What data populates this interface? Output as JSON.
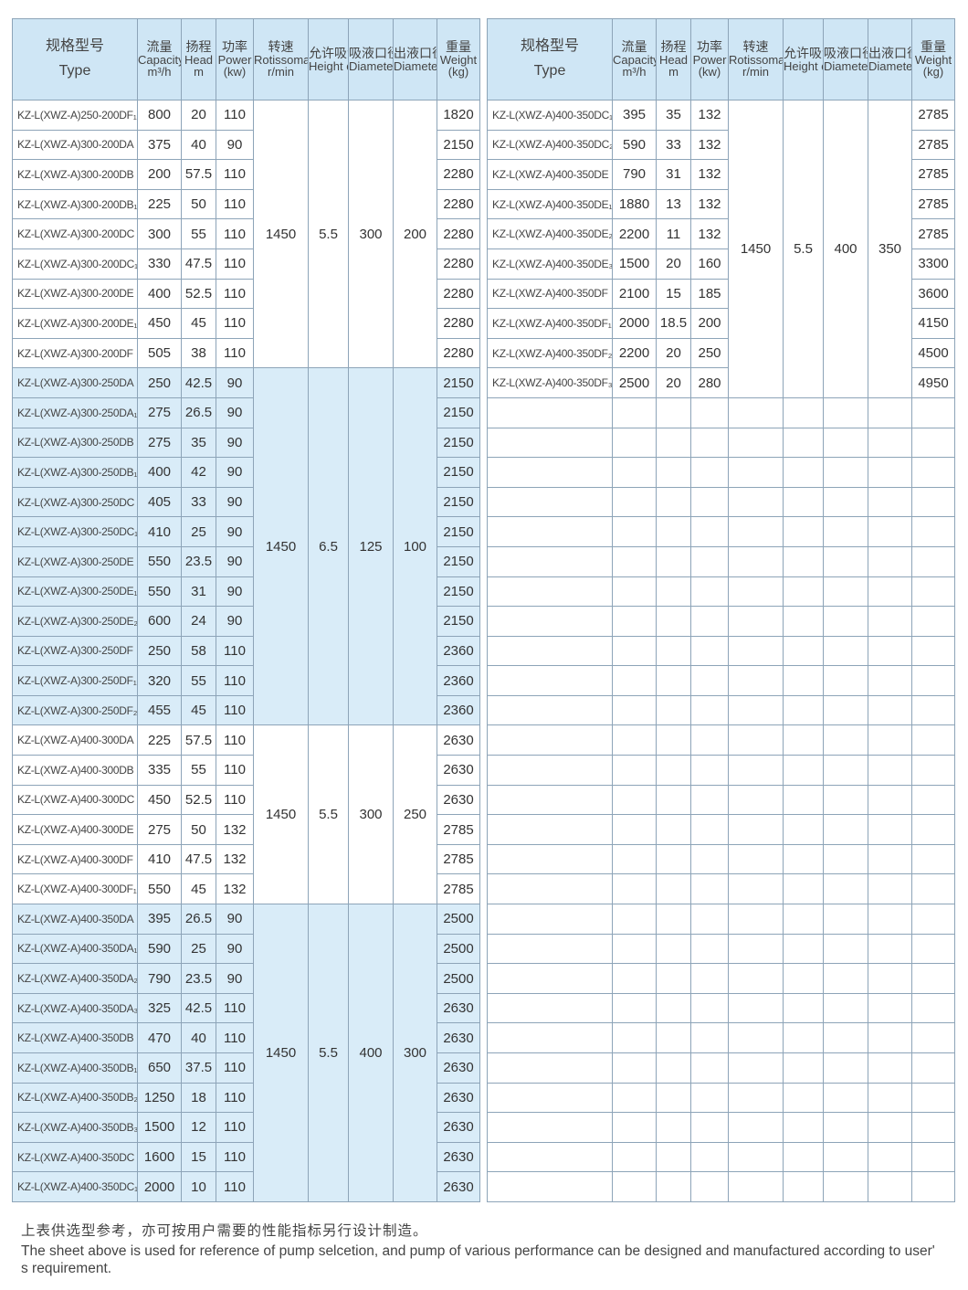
{
  "headers": [
    {
      "zh": "规格型号",
      "en": "Type"
    },
    {
      "zh": "流量",
      "en": "Capacity",
      "unit": "m³/h"
    },
    {
      "zh": "扬程",
      "en": "Head",
      "unit": "m"
    },
    {
      "zh": "功率",
      "en": "Power",
      "unit": "(kw)"
    },
    {
      "zh": "转速",
      "en": "Rotissomat Speed",
      "unit": "r/min"
    },
    {
      "zh": "允许吸深",
      "en": "Height of Suciton"
    },
    {
      "zh": "吸液口径",
      "en": "Diameter of Inlet"
    },
    {
      "zh": "出液口径",
      "en": "Diameter of Outlet"
    },
    {
      "zh": "重量",
      "en": "Weight",
      "unit": "(kg)"
    }
  ],
  "colors": {
    "header": "#cfe6f5",
    "band": "#d9ecf8",
    "border": "#8da4b8"
  },
  "left_groups": [
    {
      "shaded": false,
      "speed": "1450",
      "suction": "5.5",
      "inlet": "300",
      "outlet": "200",
      "rows": [
        [
          "KZ-L(XWZ-A)250-200DF₁",
          "800",
          "20",
          "110",
          "1820"
        ],
        [
          "KZ-L(XWZ-A)300-200DA",
          "375",
          "40",
          "90",
          "2150"
        ],
        [
          "KZ-L(XWZ-A)300-200DB",
          "200",
          "57.5",
          "110",
          "2280"
        ],
        [
          "KZ-L(XWZ-A)300-200DB₁",
          "225",
          "50",
          "110",
          "2280"
        ],
        [
          "KZ-L(XWZ-A)300-200DC",
          "300",
          "55",
          "110",
          "2280"
        ],
        [
          "KZ-L(XWZ-A)300-200DC₁",
          "330",
          "47.5",
          "110",
          "2280"
        ],
        [
          "KZ-L(XWZ-A)300-200DE",
          "400",
          "52.5",
          "110",
          "2280"
        ],
        [
          "KZ-L(XWZ-A)300-200DE₁",
          "450",
          "45",
          "110",
          "2280"
        ],
        [
          "KZ-L(XWZ-A)300-200DF",
          "505",
          "38",
          "110",
          "2280"
        ]
      ]
    },
    {
      "shaded": true,
      "speed": "1450",
      "suction": "6.5",
      "inlet": "125",
      "outlet": "100",
      "rows": [
        [
          "KZ-L(XWZ-A)300-250DA",
          "250",
          "42.5",
          "90",
          "2150"
        ],
        [
          "KZ-L(XWZ-A)300-250DA₁",
          "275",
          "26.5",
          "90",
          "2150"
        ],
        [
          "KZ-L(XWZ-A)300-250DB",
          "275",
          "35",
          "90",
          "2150"
        ],
        [
          "KZ-L(XWZ-A)300-250DB₁",
          "400",
          "42",
          "90",
          "2150"
        ],
        [
          "KZ-L(XWZ-A)300-250DC",
          "405",
          "33",
          "90",
          "2150"
        ],
        [
          "KZ-L(XWZ-A)300-250DC₁",
          "410",
          "25",
          "90",
          "2150"
        ],
        [
          "KZ-L(XWZ-A)300-250DE",
          "550",
          "23.5",
          "90",
          "2150"
        ],
        [
          "KZ-L(XWZ-A)300-250DE₁",
          "550",
          "31",
          "90",
          "2150"
        ],
        [
          "KZ-L(XWZ-A)300-250DE₂",
          "600",
          "24",
          "90",
          "2150"
        ],
        [
          "KZ-L(XWZ-A)300-250DF",
          "250",
          "58",
          "110",
          "2360"
        ],
        [
          "KZ-L(XWZ-A)300-250DF₁",
          "320",
          "55",
          "110",
          "2360"
        ],
        [
          "KZ-L(XWZ-A)300-250DF₂",
          "455",
          "45",
          "110",
          "2360"
        ]
      ]
    },
    {
      "shaded": false,
      "speed": "1450",
      "suction": "5.5",
      "inlet": "300",
      "outlet": "250",
      "rows": [
        [
          "KZ-L(XWZ-A)400-300DA",
          "225",
          "57.5",
          "110",
          "2630"
        ],
        [
          "KZ-L(XWZ-A)400-300DB",
          "335",
          "55",
          "110",
          "2630"
        ],
        [
          "KZ-L(XWZ-A)400-300DC",
          "450",
          "52.5",
          "110",
          "2630"
        ],
        [
          "KZ-L(XWZ-A)400-300DE",
          "275",
          "50",
          "132",
          "2785"
        ],
        [
          "KZ-L(XWZ-A)400-300DF",
          "410",
          "47.5",
          "132",
          "2785"
        ],
        [
          "KZ-L(XWZ-A)400-300DF₁",
          "550",
          "45",
          "132",
          "2785"
        ]
      ]
    },
    {
      "shaded": true,
      "speed": "1450",
      "suction": "5.5",
      "inlet": "400",
      "outlet": "300",
      "rows": [
        [
          "KZ-L(XWZ-A)400-350DA",
          "395",
          "26.5",
          "90",
          "2500"
        ],
        [
          "KZ-L(XWZ-A)400-350DA₁",
          "590",
          "25",
          "90",
          "2500"
        ],
        [
          "KZ-L(XWZ-A)400-350DA₂",
          "790",
          "23.5",
          "90",
          "2500"
        ],
        [
          "KZ-L(XWZ-A)400-350DA₃",
          "325",
          "42.5",
          "110",
          "2630"
        ],
        [
          "KZ-L(XWZ-A)400-350DB",
          "470",
          "40",
          "110",
          "2630"
        ],
        [
          "KZ-L(XWZ-A)400-350DB₁",
          "650",
          "37.5",
          "110",
          "2630"
        ],
        [
          "KZ-L(XWZ-A)400-350DB₂",
          "1250",
          "18",
          "110",
          "2630"
        ],
        [
          "KZ-L(XWZ-A)400-350DB₃",
          "1500",
          "12",
          "110",
          "2630"
        ],
        [
          "KZ-L(XWZ-A)400-350DC",
          "1600",
          "15",
          "110",
          "2630"
        ],
        [
          "KZ-L(XWZ-A)400-350DC₁",
          "2000",
          "10",
          "110",
          "2630"
        ]
      ]
    }
  ],
  "right_groups": [
    {
      "shaded": false,
      "speed": "1450",
      "suction": "5.5",
      "inlet": "400",
      "outlet": "350",
      "rows": [
        [
          "KZ-L(XWZ-A)400-350DC₁",
          "395",
          "35",
          "132",
          "2785"
        ],
        [
          "KZ-L(XWZ-A)400-350DC₂",
          "590",
          "33",
          "132",
          "2785"
        ],
        [
          "KZ-L(XWZ-A)400-350DE",
          "790",
          "31",
          "132",
          "2785"
        ],
        [
          "KZ-L(XWZ-A)400-350DE₁",
          "1880",
          "13",
          "132",
          "2785"
        ],
        [
          "KZ-L(XWZ-A)400-350DE₂",
          "2200",
          "11",
          "132",
          "2785"
        ],
        [
          "KZ-L(XWZ-A)400-350DE₃",
          "1500",
          "20",
          "160",
          "3300"
        ],
        [
          "KZ-L(XWZ-A)400-350DF",
          "2100",
          "15",
          "185",
          "3600"
        ],
        [
          "KZ-L(XWZ-A)400-350DF₁",
          "2000",
          "18.5",
          "200",
          "4150"
        ],
        [
          "KZ-L(XWZ-A)400-350DF₂",
          "2200",
          "20",
          "250",
          "4500"
        ],
        [
          "KZ-L(XWZ-A)400-350DF₃",
          "2500",
          "20",
          "280",
          "4950"
        ]
      ]
    }
  ],
  "notes": {
    "zh": "上表供选型参考，亦可按用户需要的性能指标另行设计制造。",
    "en": "The sheet above is used for reference of pump selcetion, and pump of various performance can be designed and manufactured according to user' s requirement."
  }
}
